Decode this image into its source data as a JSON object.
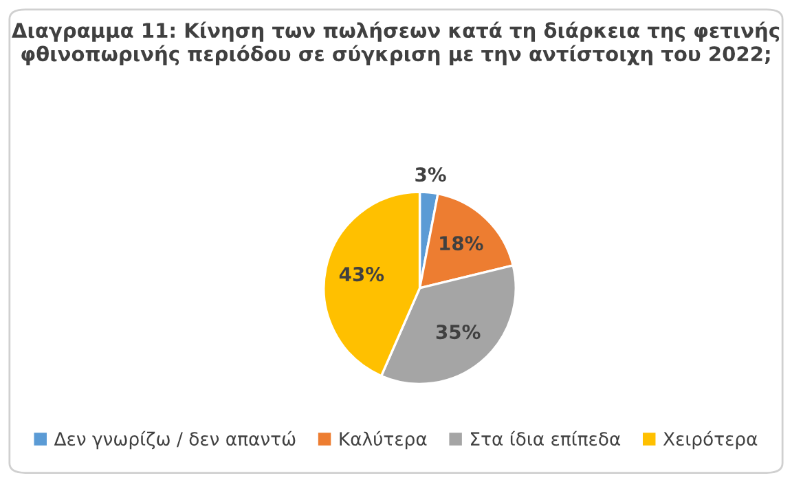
{
  "chart_data": {
    "type": "pie",
    "title": "Διαγραμμα 11: Κίνηση των πωλήσεων κατά τη διάρκεια της φετινής φθινοπωρινής περιόδου σε σύγκριση με την αντίστοιχη του 2022;",
    "categories": [
      "Δεν γνωρίζω / δεν απαντώ",
      "Καλύτερα",
      "Στα ίδια επίπεδα",
      "Χειρότερα"
    ],
    "values": [
      3,
      18,
      35,
      43
    ],
    "colors": [
      "#5b9bd5",
      "#ed7d31",
      "#a5a5a5",
      "#ffc000"
    ],
    "value_labels": [
      "3%",
      "18%",
      "35%",
      "43%"
    ],
    "legend": "bottom"
  }
}
